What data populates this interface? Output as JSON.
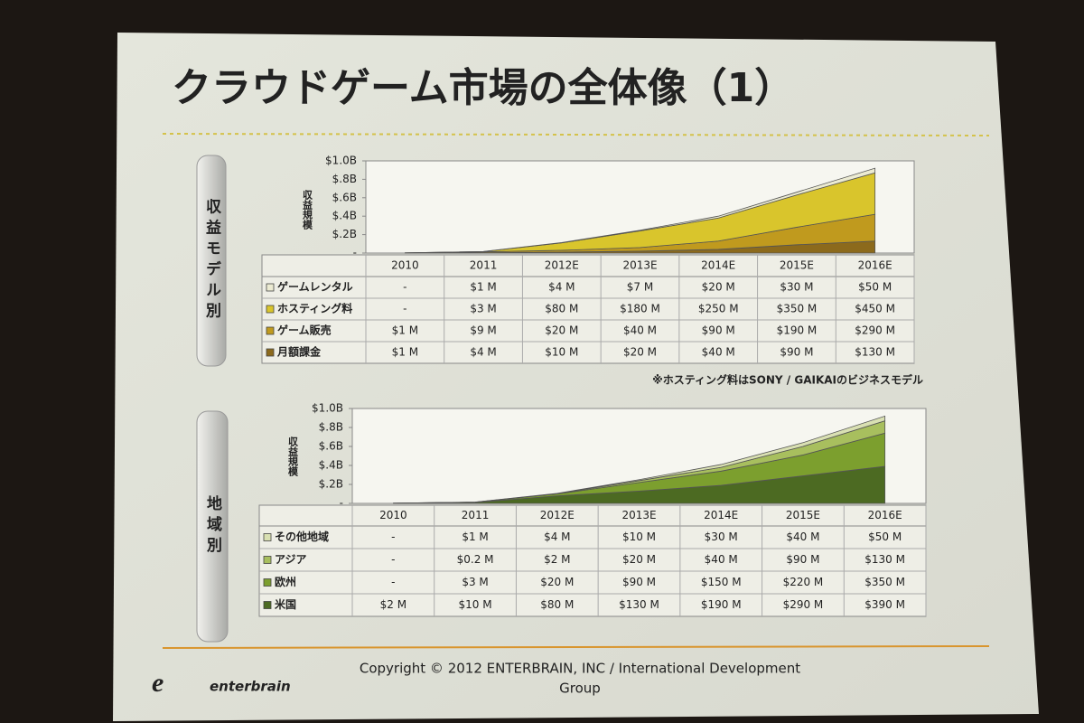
{
  "title": "クラウドゲーム市場の全体像（1）",
  "chart_data": [
    {
      "type": "area",
      "stacked": true,
      "side_label": "収益モデル別",
      "y_label": "収益規模",
      "note": "※ホスティング料はSONY / GAIKAIのビジネスモデル",
      "categories": [
        "2010",
        "2011",
        "2012E",
        "2013E",
        "2014E",
        "2015E",
        "2016E"
      ],
      "ylim": [
        0,
        1000000000
      ],
      "yticks": [
        {
          "value": 0,
          "label": "-"
        },
        {
          "value": 200000000,
          "label": "$.2B"
        },
        {
          "value": 400000000,
          "label": "$.4B"
        },
        {
          "value": 600000000,
          "label": "$.6B"
        },
        {
          "value": 800000000,
          "label": "$.8B"
        },
        {
          "value": 1000000000,
          "label": "$1.0B"
        }
      ],
      "grid": false,
      "series": [
        {
          "name": "ゲームレンタル",
          "color": "#ecebd2",
          "values": [
            0,
            1000000,
            4000000,
            7000000,
            20000000,
            30000000,
            50000000
          ],
          "value_labels": [
            "-",
            "$1 M",
            "$4 M",
            "$7 M",
            "$20 M",
            "$30 M",
            "$50 M"
          ]
        },
        {
          "name": "ホスティング料",
          "color": "#d9c52c",
          "values": [
            0,
            3000000,
            80000000,
            180000000,
            250000000,
            350000000,
            450000000
          ],
          "value_labels": [
            "-",
            "$3 M",
            "$80 M",
            "$180 M",
            "$250 M",
            "$350 M",
            "$450 M"
          ]
        },
        {
          "name": "ゲーム販売",
          "color": "#c09a1e",
          "values": [
            1000000,
            9000000,
            20000000,
            40000000,
            90000000,
            190000000,
            290000000
          ],
          "value_labels": [
            "$1 M",
            "$9 M",
            "$20 M",
            "$40 M",
            "$90 M",
            "$190 M",
            "$290 M"
          ]
        },
        {
          "name": "月額課金",
          "color": "#8c6a1c",
          "values": [
            1000000,
            4000000,
            10000000,
            20000000,
            40000000,
            90000000,
            130000000
          ],
          "value_labels": [
            "$1 M",
            "$4 M",
            "$10 M",
            "$20 M",
            "$40 M",
            "$90 M",
            "$130 M"
          ]
        }
      ]
    },
    {
      "type": "area",
      "stacked": true,
      "side_label": "地域別",
      "y_label": "収益規模",
      "categories": [
        "2010",
        "2011",
        "2012E",
        "2013E",
        "2014E",
        "2015E",
        "2016E"
      ],
      "ylim": [
        0,
        1000000000
      ],
      "yticks": [
        {
          "value": 0,
          "label": "-"
        },
        {
          "value": 200000000,
          "label": "$.2B"
        },
        {
          "value": 400000000,
          "label": "$.4B"
        },
        {
          "value": 600000000,
          "label": "$.6B"
        },
        {
          "value": 800000000,
          "label": "$.8B"
        },
        {
          "value": 1000000000,
          "label": "$1.0B"
        }
      ],
      "grid": false,
      "series": [
        {
          "name": "その他地域",
          "color": "#d9e0b2",
          "values": [
            0,
            1000000,
            4000000,
            10000000,
            30000000,
            40000000,
            50000000
          ],
          "value_labels": [
            "-",
            "$1 M",
            "$4 M",
            "$10 M",
            "$30 M",
            "$40 M",
            "$50 M"
          ]
        },
        {
          "name": "アジア",
          "color": "#a8bf5e",
          "values": [
            0,
            200000,
            2000000,
            20000000,
            40000000,
            90000000,
            130000000
          ],
          "value_labels": [
            "-",
            "$0.2 M",
            "$2 M",
            "$20 M",
            "$40 M",
            "$90 M",
            "$130 M"
          ]
        },
        {
          "name": "欧州",
          "color": "#7c9f2e",
          "values": [
            0,
            3000000,
            20000000,
            90000000,
            150000000,
            220000000,
            350000000
          ],
          "value_labels": [
            "-",
            "$3 M",
            "$20 M",
            "$90 M",
            "$150 M",
            "$220 M",
            "$350 M"
          ]
        },
        {
          "name": "米国",
          "color": "#4c6a22",
          "values": [
            2000000,
            10000000,
            80000000,
            130000000,
            190000000,
            290000000,
            390000000
          ],
          "value_labels": [
            "$2 M",
            "$10 M",
            "$80 M",
            "$130 M",
            "$190 M",
            "$290 M",
            "$390 M"
          ]
        }
      ]
    }
  ],
  "footer": {
    "logo": "enterbrain",
    "copyright_line1": "Copyright © 2012 ENTERBRAIN, INC / International Development",
    "copyright_line2": "Group"
  }
}
